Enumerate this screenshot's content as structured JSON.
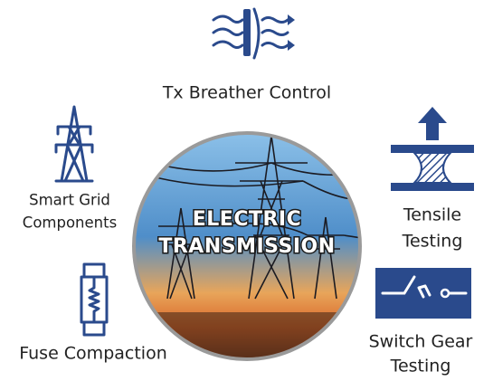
{
  "center": {
    "lines": [
      "ELECTRIC",
      "TRANSMISSION"
    ]
  },
  "items": [
    {
      "lines": [
        "Tx Breather Control"
      ]
    },
    {
      "lines": [
        "Smart Grid",
        "Components"
      ]
    },
    {
      "lines": [
        "Tensile",
        "Testing"
      ]
    },
    {
      "lines": [
        "Fuse Compaction"
      ]
    },
    {
      "lines": [
        "Switch Gear",
        "Testing"
      ]
    }
  ]
}
